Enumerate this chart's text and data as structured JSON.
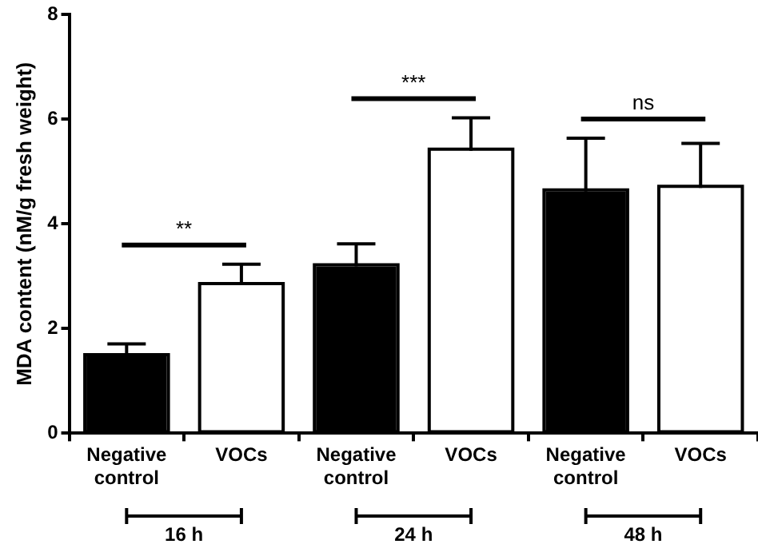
{
  "chart_data": {
    "type": "bar",
    "ylabel": "MDA content (nM/g fresh weight)",
    "categories": [
      "Negative control",
      "VOCs",
      "Negative control",
      "VOCs",
      "Negative control",
      "VOCs"
    ],
    "values": [
      1.47,
      2.83,
      3.19,
      5.4,
      4.62,
      4.69
    ],
    "errors": [
      [
        1.47,
        1.71
      ],
      [
        2.83,
        3.23
      ],
      [
        3.19,
        3.62
      ],
      [
        5.4,
        6.03
      ],
      [
        4.62,
        5.64
      ],
      [
        4.69,
        5.54
      ]
    ],
    "colors": [
      "#000000",
      "#ffffff",
      "#000000",
      "#ffffff",
      "#000000",
      "#ffffff"
    ],
    "ylim": [
      0,
      8
    ],
    "yticks": [
      0,
      2,
      4,
      6,
      8
    ],
    "grid": false,
    "legend": false,
    "annotations": [
      "**",
      "***",
      "ns",
      "16 h",
      "24 h",
      "48 h"
    ]
  }
}
